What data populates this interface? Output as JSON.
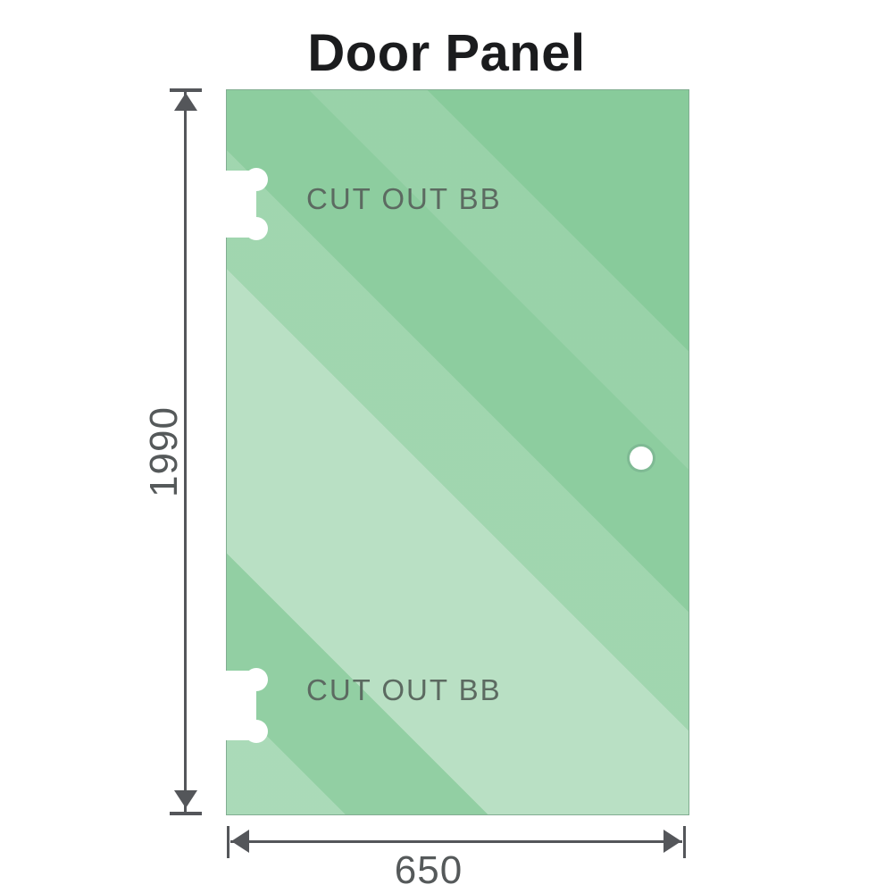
{
  "title": "Door Panel",
  "panel": {
    "kind": "glass-door-panel",
    "cutout_top": {
      "label": "CUT OUT BB"
    },
    "cutout_bottom": {
      "label": "CUT OUT BB"
    },
    "colors": {
      "glass_base": "#86ca99",
      "glass_highlight": "#c4e6cd",
      "edge": "#7d968a"
    }
  },
  "dimensions": {
    "height_value": "1990",
    "width_value": "650",
    "line_color": "#54565a",
    "text_color": "#55595a"
  }
}
